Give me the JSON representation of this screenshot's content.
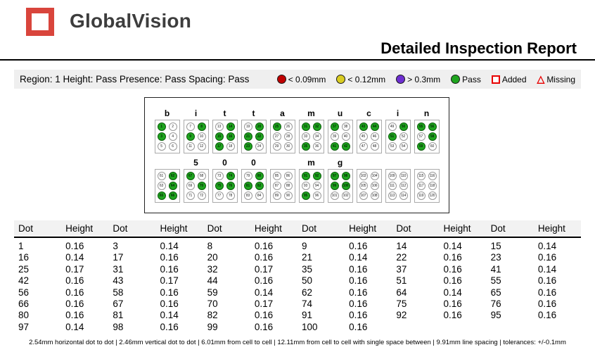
{
  "header": {
    "logo_text": "GlobalVision",
    "title": "Detailed Inspection Report"
  },
  "region_bar": {
    "text": "Region: 1 Height: Pass Presence: Pass Spacing: Pass",
    "legend": [
      {
        "icon": "red-circle-icon",
        "shape": "circle",
        "color": "#c00000",
        "label": "< 0.09mm"
      },
      {
        "icon": "yellow-circle-icon",
        "shape": "circle",
        "color": "#d9cc22",
        "label": "< 0.12mm"
      },
      {
        "icon": "purple-circle-icon",
        "shape": "circle",
        "color": "#6e2fd2",
        "label": "> 0.3mm"
      },
      {
        "icon": "green-circle-icon",
        "shape": "circle",
        "color": "#1fa51f",
        "label": "Pass"
      },
      {
        "icon": "added-square-icon",
        "shape": "square",
        "color": "#e80000",
        "label": "Added"
      },
      {
        "icon": "missing-triangle-icon",
        "shape": "triangle",
        "color": "#e80000",
        "label": "Missing"
      }
    ]
  },
  "diagram": {
    "dot_pass_color": "#1fa51f",
    "rows": [
      {
        "cells": [
          {
            "label": "b",
            "start": 1,
            "raised": [
              1,
              3
            ]
          },
          {
            "label": "i",
            "start": 7,
            "raised": [
              8,
              9
            ]
          },
          {
            "label": "t",
            "start": 13,
            "raised": [
              14,
              15,
              16,
              17
            ]
          },
          {
            "label": "t",
            "start": 19,
            "raised": [
              20,
              21,
              22,
              23
            ]
          },
          {
            "label": "a",
            "start": 25,
            "raised": [
              25
            ]
          },
          {
            "label": "m",
            "start": 31,
            "raised": [
              31,
              32,
              35
            ]
          },
          {
            "label": "u",
            "start": 37,
            "raised": [
              37,
              41,
              42
            ]
          },
          {
            "label": "c",
            "start": 43,
            "raised": [
              43,
              44
            ]
          },
          {
            "label": "i",
            "start": 49,
            "raised": [
              50,
              51
            ]
          },
          {
            "label": "n",
            "start": 55,
            "raised": [
              55,
              56,
              58,
              59
            ]
          }
        ]
      },
      {
        "cells": [
          {
            "label": "",
            "start": 61,
            "raised": [
              62,
              64,
              65,
              66
            ]
          },
          {
            "label": "5",
            "start": 67,
            "raised": [
              67,
              70
            ]
          },
          {
            "label": "0",
            "start": 73,
            "raised": [
              74,
              75,
              76
            ]
          },
          {
            "label": "0",
            "start": 79,
            "raised": [
              80,
              81,
              82
            ]
          },
          {
            "label": "",
            "start": 85,
            "raised": []
          },
          {
            "label": "m",
            "start": 91,
            "raised": [
              91,
              92,
              95
            ]
          },
          {
            "label": "g",
            "start": 97,
            "raised": [
              97,
              98,
              99,
              100
            ]
          },
          {
            "label": "",
            "start": 103,
            "raised": []
          },
          {
            "label": "",
            "start": 109,
            "raised": []
          },
          {
            "label": "",
            "start": 115,
            "raised": []
          }
        ]
      }
    ]
  },
  "table": {
    "col_headers": [
      "Dot",
      "Height"
    ],
    "pairs_per_row": 6,
    "entries": [
      [
        1,
        "0.16"
      ],
      [
        3,
        "0.14"
      ],
      [
        8,
        "0.16"
      ],
      [
        9,
        "0.16"
      ],
      [
        14,
        "0.14"
      ],
      [
        15,
        "0.14"
      ],
      [
        16,
        "0.14"
      ],
      [
        17,
        "0.16"
      ],
      [
        20,
        "0.16"
      ],
      [
        21,
        "0.14"
      ],
      [
        22,
        "0.16"
      ],
      [
        23,
        "0.16"
      ],
      [
        25,
        "0.17"
      ],
      [
        31,
        "0.16"
      ],
      [
        32,
        "0.17"
      ],
      [
        35,
        "0.16"
      ],
      [
        37,
        "0.16"
      ],
      [
        41,
        "0.14"
      ],
      [
        42,
        "0.16"
      ],
      [
        43,
        "0.17"
      ],
      [
        44,
        "0.16"
      ],
      [
        50,
        "0.16"
      ],
      [
        51,
        "0.16"
      ],
      [
        55,
        "0.16"
      ],
      [
        56,
        "0.16"
      ],
      [
        58,
        "0.16"
      ],
      [
        59,
        "0.14"
      ],
      [
        62,
        "0.16"
      ],
      [
        64,
        "0.14"
      ],
      [
        65,
        "0.16"
      ],
      [
        66,
        "0.16"
      ],
      [
        67,
        "0.16"
      ],
      [
        70,
        "0.17"
      ],
      [
        74,
        "0.16"
      ],
      [
        75,
        "0.16"
      ],
      [
        76,
        "0.16"
      ],
      [
        80,
        "0.16"
      ],
      [
        81,
        "0.14"
      ],
      [
        82,
        "0.16"
      ],
      [
        91,
        "0.16"
      ],
      [
        92,
        "0.16"
      ],
      [
        95,
        "0.16"
      ],
      [
        97,
        "0.14"
      ],
      [
        98,
        "0.16"
      ],
      [
        99,
        "0.16"
      ],
      [
        100,
        "0.16"
      ]
    ]
  },
  "footer": "2.54mm horizontal dot to dot  |  2.46mm vertical dot to dot  |  6.01mm from cell to cell  |  12.11mm from cell to cell with single space between  |  9.91mm line spacing  |  tolerances: +/-0.1mm"
}
